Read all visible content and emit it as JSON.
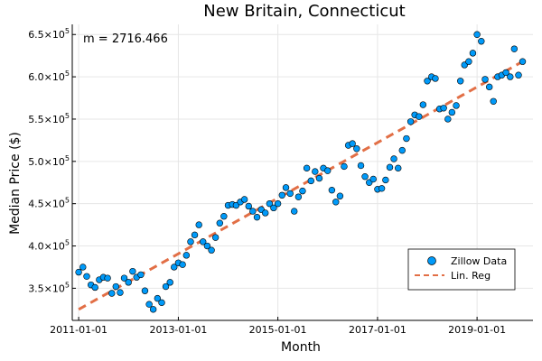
{
  "chart_data": {
    "type": "scatter",
    "title": "New Britain, Connecticut",
    "xlabel": "Month",
    "ylabel": "Median Price ($)",
    "annotation": "m = 2716.466",
    "x_ticks": [
      "2011-01-01",
      "2013-01-01",
      "2015-01-01",
      "2017-01-01",
      "2019-01-01"
    ],
    "y_ticks": [
      {
        "value": 350000,
        "mantissa": "3.5×10",
        "exp": "5"
      },
      {
        "value": 400000,
        "mantissa": "4.0×10",
        "exp": "5"
      },
      {
        "value": 450000,
        "mantissa": "4.5×10",
        "exp": "5"
      },
      {
        "value": 500000,
        "mantissa": "5.0×10",
        "exp": "5"
      },
      {
        "value": 550000,
        "mantissa": "5.5×10",
        "exp": "5"
      },
      {
        "value": 600000,
        "mantissa": "6.0×10",
        "exp": "5"
      },
      {
        "value": 650000,
        "mantissa": "6.5×10",
        "exp": "5"
      }
    ],
    "x_range": [
      "2010-11-15",
      "2020-02-15"
    ],
    "ylim": [
      312000,
      662000
    ],
    "grid": true,
    "legend_position": "bottom-right",
    "series": [
      {
        "name": "Zillow Data",
        "kind": "scatter",
        "color": "#009AF9",
        "x": [
          "2011-01",
          "2011-02",
          "2011-03",
          "2011-04",
          "2011-05",
          "2011-06",
          "2011-07",
          "2011-08",
          "2011-09",
          "2011-10",
          "2011-11",
          "2011-12",
          "2012-01",
          "2012-02",
          "2012-03",
          "2012-04",
          "2012-05",
          "2012-06",
          "2012-07",
          "2012-08",
          "2012-09",
          "2012-10",
          "2012-11",
          "2012-12",
          "2013-01",
          "2013-02",
          "2013-03",
          "2013-04",
          "2013-05",
          "2013-06",
          "2013-07",
          "2013-08",
          "2013-09",
          "2013-10",
          "2013-11",
          "2013-12",
          "2014-01",
          "2014-02",
          "2014-03",
          "2014-04",
          "2014-05",
          "2014-06",
          "2014-07",
          "2014-08",
          "2014-09",
          "2014-10",
          "2014-11",
          "2014-12",
          "2015-01",
          "2015-02",
          "2015-03",
          "2015-04",
          "2015-05",
          "2015-06",
          "2015-07",
          "2015-08",
          "2015-09",
          "2015-10",
          "2015-11",
          "2015-12",
          "2016-01",
          "2016-02",
          "2016-03",
          "2016-04",
          "2016-05",
          "2016-06",
          "2016-07",
          "2016-08",
          "2016-09",
          "2016-10",
          "2016-11",
          "2016-12",
          "2017-01",
          "2017-02",
          "2017-03",
          "2017-04",
          "2017-05",
          "2017-06",
          "2017-07",
          "2017-08",
          "2017-09",
          "2017-10",
          "2017-11",
          "2017-12",
          "2018-01",
          "2018-02",
          "2018-03",
          "2018-04",
          "2018-05",
          "2018-06",
          "2018-07",
          "2018-08",
          "2018-09",
          "2018-10",
          "2018-11",
          "2018-12",
          "2019-01",
          "2019-02",
          "2019-03",
          "2019-04",
          "2019-05",
          "2019-06",
          "2019-07",
          "2019-08",
          "2019-09",
          "2019-10",
          "2019-11",
          "2019-12"
        ],
        "y": [
          369000,
          375000,
          364000,
          354000,
          351000,
          360000,
          363000,
          362000,
          344000,
          352000,
          345000,
          362000,
          357000,
          370000,
          363000,
          366000,
          347000,
          331000,
          325000,
          338000,
          333000,
          352000,
          357000,
          375000,
          380000,
          378000,
          389000,
          405000,
          413000,
          425000,
          405000,
          400000,
          395000,
          410000,
          427000,
          435000,
          448000,
          449000,
          448000,
          452000,
          455000,
          447000,
          441000,
          434000,
          443000,
          439000,
          450000,
          445000,
          450000,
          460000,
          469000,
          462000,
          441000,
          458000,
          465000,
          492000,
          477000,
          488000,
          480000,
          492000,
          489000,
          466000,
          452000,
          459000,
          494000,
          519000,
          521000,
          515000,
          495000,
          482000,
          475000,
          479000,
          467000,
          468000,
          478000,
          493000,
          503000,
          492000,
          513000,
          527000,
          547000,
          555000,
          553000,
          567000,
          595000,
          600000,
          598000,
          562000,
          563000,
          550000,
          558000,
          566000,
          595000,
          614000,
          618000,
          628000,
          650000,
          642000,
          597000,
          588000,
          571000,
          600000,
          602000,
          605000,
          600000,
          633000,
          602000,
          618000
        ]
      },
      {
        "name": "Lin. Reg",
        "kind": "line",
        "color": "#E26F46",
        "slope_per_month": 2716.466,
        "x": [
          "2011-01",
          "2019-12"
        ],
        "y": [
          325000,
          618000
        ]
      }
    ]
  }
}
